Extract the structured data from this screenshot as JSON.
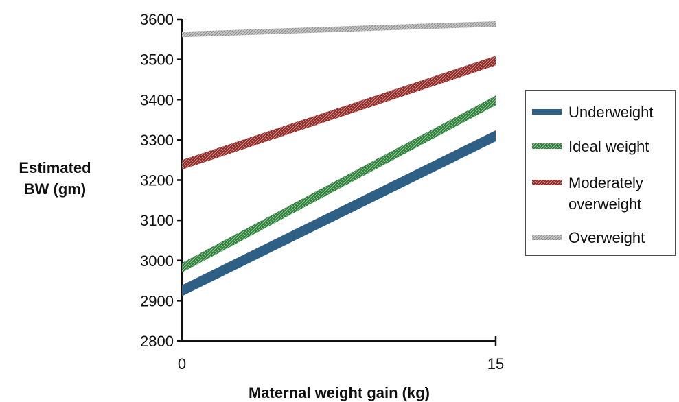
{
  "chart_data": {
    "type": "line",
    "title": "",
    "xlabel": "Maternal weight gain (kg)",
    "ylabel_lines": [
      "Estimated",
      "BW (gm)"
    ],
    "x": [
      0,
      15
    ],
    "x_ticks": [
      0,
      15
    ],
    "xlim": [
      0,
      15
    ],
    "ylim": [
      2800,
      3600
    ],
    "y_ticks": [
      2800,
      2900,
      3000,
      3100,
      3200,
      3300,
      3400,
      3500,
      3600
    ],
    "grid": false,
    "legend_position": "right",
    "series": [
      {
        "name": "Underweight",
        "values": [
          2925,
          3310
        ],
        "color": "#2e5f85",
        "style": "solid"
      },
      {
        "name": "Ideal weight",
        "values": [
          2982,
          3398
        ],
        "color": "#2e7d3a",
        "style": "hatched"
      },
      {
        "name": "Moderately overweight",
        "legend_lines": [
          "Moderately",
          "overweight"
        ],
        "values": [
          3238,
          3497
        ],
        "color": "#8b2a26",
        "style": "hatched"
      },
      {
        "name": "Overweight",
        "values": [
          3562,
          3588
        ],
        "color": "#a8a8a8",
        "style": "hatched-light"
      }
    ]
  }
}
